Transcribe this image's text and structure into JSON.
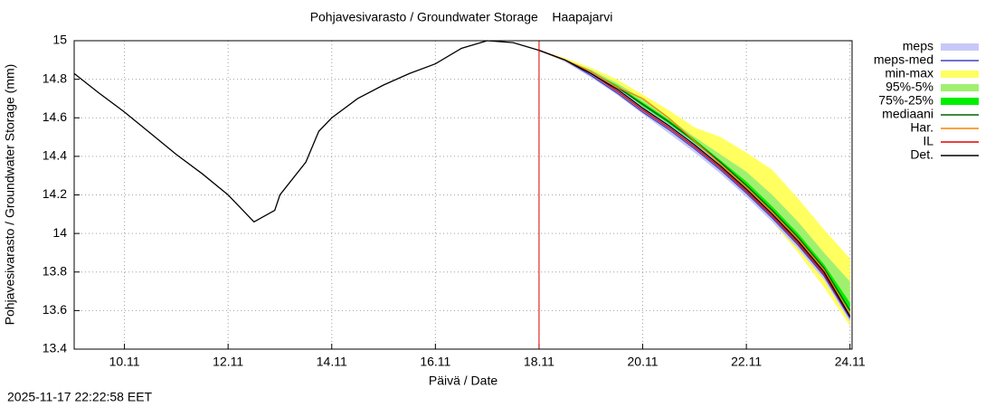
{
  "chart_data": {
    "type": "line",
    "title": "Pohjavesivarasto / Groundwater Storage    Haapajarvi",
    "x_label": "Päivä / Date",
    "y_label": "Pohjavesivarasto / Groundwater Storage (mm)",
    "timestamp": "2025-11-17 22:22:58 EET",
    "xlim": [
      9.03,
      24.04
    ],
    "ylim": [
      13.4,
      15
    ],
    "xticks": [
      {
        "value": 10,
        "label": "10.11"
      },
      {
        "value": 12,
        "label": "12.11"
      },
      {
        "value": 14,
        "label": "14.11"
      },
      {
        "value": 16,
        "label": "16.11"
      },
      {
        "value": 18,
        "label": "18.11"
      },
      {
        "value": 20,
        "label": "20.11"
      },
      {
        "value": 22,
        "label": "22.11"
      },
      {
        "value": 24,
        "label": "24.11"
      }
    ],
    "yticks": [
      13.4,
      13.6,
      13.8,
      14,
      14.2,
      14.4,
      14.6,
      14.8,
      15
    ],
    "grid": true,
    "vline_x": 18,
    "vline_color": "#e00000",
    "x": [
      9.03,
      9.5,
      10,
      10.5,
      11,
      11.5,
      12,
      12.5,
      12.9,
      13,
      13.5,
      13.75,
      14,
      14.5,
      15,
      15.5,
      16,
      16.5,
      17,
      17.5,
      18,
      18.5,
      19,
      19.5,
      20,
      20.5,
      21,
      21.5,
      22,
      22.5,
      23,
      23.5,
      24
    ],
    "series": [
      {
        "name": "meps",
        "color": "#c8c8f8",
        "lower": [
          null,
          null,
          null,
          null,
          null,
          null,
          null,
          null,
          null,
          null,
          null,
          null,
          null,
          null,
          null,
          null,
          null,
          null,
          null,
          null,
          14.95,
          14.89,
          14.81,
          14.72,
          14.62,
          14.52,
          14.42,
          14.31,
          14.19,
          14.06,
          13.92,
          13.76,
          13.54
        ],
        "upper": [
          null,
          null,
          null,
          null,
          null,
          null,
          null,
          null,
          null,
          null,
          null,
          null,
          null,
          null,
          null,
          null,
          null,
          null,
          null,
          null,
          14.95,
          14.9,
          14.84,
          14.76,
          14.66,
          14.57,
          14.47,
          14.36,
          14.24,
          14.11,
          13.97,
          13.81,
          13.59
        ]
      },
      {
        "name": "meps-med",
        "color": "#4040c0",
        "values": [
          null,
          null,
          null,
          null,
          null,
          null,
          null,
          null,
          null,
          null,
          null,
          null,
          null,
          null,
          null,
          null,
          null,
          null,
          null,
          null,
          14.95,
          14.9,
          14.82,
          14.73,
          14.63,
          14.54,
          14.44,
          14.33,
          14.21,
          14.08,
          13.94,
          13.78,
          13.56
        ]
      },
      {
        "name": "min-max",
        "color": "#ffff60",
        "lower": [
          null,
          null,
          null,
          null,
          null,
          null,
          null,
          null,
          null,
          null,
          null,
          null,
          null,
          null,
          null,
          null,
          null,
          null,
          null,
          null,
          14.95,
          14.89,
          14.82,
          14.73,
          14.63,
          14.53,
          14.43,
          14.32,
          14.2,
          14.06,
          13.9,
          13.72,
          13.52
        ],
        "upper": [
          null,
          null,
          null,
          null,
          null,
          null,
          null,
          null,
          null,
          null,
          null,
          null,
          null,
          null,
          null,
          null,
          null,
          null,
          null,
          null,
          14.95,
          14.91,
          14.86,
          14.8,
          14.72,
          14.64,
          14.55,
          14.5,
          14.42,
          14.33,
          14.18,
          14.02,
          13.87
        ]
      },
      {
        "name": "95%-5%",
        "color": "#a0f070",
        "lower": [
          null,
          null,
          null,
          null,
          null,
          null,
          null,
          null,
          null,
          null,
          null,
          null,
          null,
          null,
          null,
          null,
          null,
          null,
          null,
          null,
          14.95,
          14.89,
          14.82,
          14.74,
          14.64,
          14.54,
          14.44,
          14.33,
          14.21,
          14.08,
          13.93,
          13.76,
          13.55
        ],
        "upper": [
          null,
          null,
          null,
          null,
          null,
          null,
          null,
          null,
          null,
          null,
          null,
          null,
          null,
          null,
          null,
          null,
          null,
          null,
          null,
          null,
          14.95,
          14.9,
          14.85,
          14.78,
          14.7,
          14.6,
          14.5,
          14.41,
          14.32,
          14.2,
          14.06,
          13.9,
          13.75
        ]
      },
      {
        "name": "75%-25%",
        "color": "#00ee00",
        "lower": [
          null,
          null,
          null,
          null,
          null,
          null,
          null,
          null,
          null,
          null,
          null,
          null,
          null,
          null,
          null,
          null,
          null,
          null,
          null,
          null,
          14.95,
          14.9,
          14.83,
          14.75,
          14.65,
          14.56,
          14.46,
          14.35,
          14.23,
          14.1,
          13.96,
          13.8,
          13.58
        ],
        "upper": [
          null,
          null,
          null,
          null,
          null,
          null,
          null,
          null,
          null,
          null,
          null,
          null,
          null,
          null,
          null,
          null,
          null,
          null,
          null,
          null,
          14.95,
          14.9,
          14.84,
          14.77,
          14.68,
          14.59,
          14.49,
          14.38,
          14.27,
          14.14,
          14.0,
          13.84,
          13.64
        ]
      },
      {
        "name": "mediaani",
        "color": "#006400",
        "values": [
          null,
          null,
          null,
          null,
          null,
          null,
          null,
          null,
          null,
          null,
          null,
          null,
          null,
          null,
          null,
          null,
          null,
          null,
          null,
          null,
          14.95,
          14.9,
          14.84,
          14.76,
          14.67,
          14.58,
          14.48,
          14.37,
          14.25,
          14.12,
          13.98,
          13.82,
          13.6
        ]
      },
      {
        "name": "Har.",
        "color": "#ff8000",
        "values": [
          null,
          null,
          null,
          null,
          null,
          null,
          null,
          null,
          null,
          null,
          null,
          null,
          null,
          null,
          null,
          null,
          null,
          null,
          null,
          null,
          14.95,
          14.9,
          14.84,
          14.76,
          14.7,
          14.6,
          14.48,
          14.36,
          14.24,
          14.11,
          13.97,
          13.81,
          13.58
        ]
      },
      {
        "name": "IL",
        "color": "#e00000",
        "values": [
          null,
          null,
          null,
          null,
          null,
          null,
          null,
          null,
          null,
          null,
          null,
          null,
          null,
          null,
          null,
          null,
          null,
          null,
          null,
          null,
          14.95,
          14.9,
          14.83,
          14.74,
          14.64,
          14.55,
          14.45,
          14.34,
          14.22,
          14.09,
          13.95,
          13.79,
          13.57
        ]
      },
      {
        "name": "Det.",
        "color": "#000000",
        "values": [
          14.83,
          14.73,
          14.63,
          14.52,
          14.41,
          14.31,
          14.2,
          14.06,
          14.12,
          14.2,
          14.37,
          14.53,
          14.6,
          14.7,
          14.77,
          14.83,
          14.88,
          14.96,
          15.0,
          14.99,
          14.95,
          14.9,
          14.83,
          14.75,
          14.65,
          14.56,
          14.46,
          14.35,
          14.23,
          14.1,
          13.96,
          13.8,
          13.57
        ]
      }
    ]
  }
}
